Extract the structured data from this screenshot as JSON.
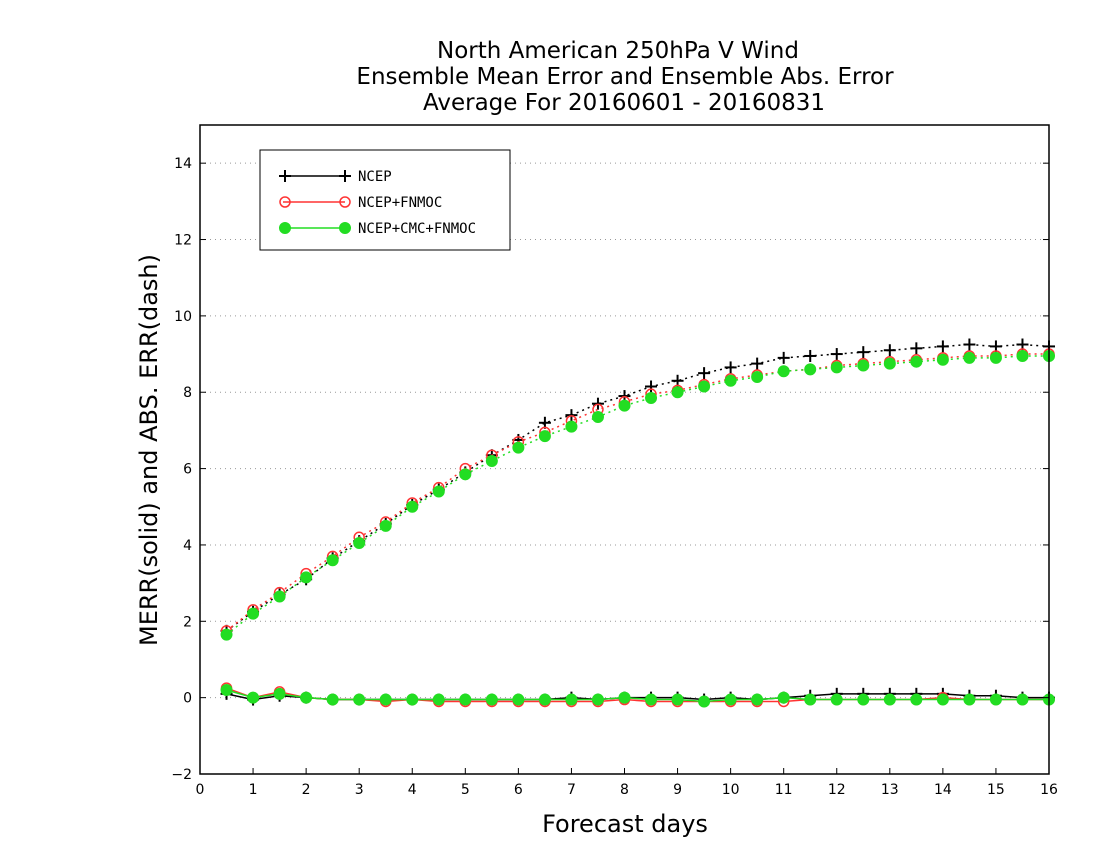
{
  "chart_data": {
    "type": "line",
    "title_lines": [
      "North American 250hPa V Wind",
      "Ensemble Mean Error and Ensemble Abs. Error",
      "Average For 20160601 - 20160831"
    ],
    "xlabel": "Forecast days",
    "ylabel": "MERR(solid) and ABS. ERR(dash)",
    "xlim": [
      0,
      16
    ],
    "ylim": [
      -2,
      15
    ],
    "xticks": [
      0,
      1,
      2,
      3,
      4,
      5,
      6,
      7,
      8,
      9,
      10,
      11,
      12,
      13,
      14,
      15,
      16
    ],
    "yticks": [
      -2,
      0,
      2,
      4,
      6,
      8,
      10,
      12,
      14
    ],
    "grid": "horizontal-dotted",
    "legend_position": "top-left",
    "x": [
      0.5,
      1,
      1.5,
      2,
      2.5,
      3,
      3.5,
      4,
      4.5,
      5,
      5.5,
      6,
      6.5,
      7,
      7.5,
      8,
      8.5,
      9,
      9.5,
      10,
      10.5,
      11,
      11.5,
      12,
      12.5,
      13,
      13.5,
      14,
      14.5,
      15,
      15.5,
      16
    ],
    "series": [
      {
        "name": "NCEP",
        "color": "#000000",
        "marker": "plus",
        "abs_err": [
          1.75,
          2.25,
          2.7,
          3.1,
          3.65,
          4.1,
          4.55,
          5.05,
          5.45,
          5.9,
          6.35,
          6.75,
          7.2,
          7.4,
          7.7,
          7.9,
          8.15,
          8.3,
          8.5,
          8.65,
          8.75,
          8.9,
          8.95,
          9.0,
          9.05,
          9.1,
          9.15,
          9.2,
          9.25,
          9.2,
          9.25,
          9.2
        ],
        "mean_err": [
          0.1,
          -0.05,
          0.05,
          0.0,
          -0.05,
          -0.05,
          -0.05,
          -0.05,
          -0.05,
          -0.05,
          -0.05,
          -0.05,
          -0.05,
          0.0,
          -0.05,
          0.0,
          0.0,
          0.0,
          -0.05,
          0.0,
          -0.05,
          0.0,
          0.05,
          0.1,
          0.1,
          0.1,
          0.1,
          0.1,
          0.05,
          0.05,
          0.0,
          0.0
        ]
      },
      {
        "name": "NCEP+FNMOC",
        "color": "#ff3333",
        "marker": "open-circle",
        "abs_err": [
          1.75,
          2.3,
          2.75,
          3.25,
          3.7,
          4.2,
          4.6,
          5.1,
          5.5,
          6.0,
          6.35,
          6.7,
          6.95,
          7.25,
          7.55,
          7.75,
          7.95,
          8.05,
          8.2,
          8.35,
          8.45,
          8.55,
          8.6,
          8.7,
          8.75,
          8.8,
          8.85,
          8.9,
          8.95,
          8.95,
          9.0,
          9.0
        ],
        "mean_err": [
          0.25,
          0.0,
          0.15,
          0.0,
          -0.05,
          -0.05,
          -0.1,
          -0.05,
          -0.1,
          -0.1,
          -0.1,
          -0.1,
          -0.1,
          -0.1,
          -0.1,
          -0.05,
          -0.1,
          -0.1,
          -0.1,
          -0.1,
          -0.1,
          -0.1,
          -0.05,
          -0.05,
          -0.05,
          -0.05,
          -0.05,
          0.0,
          -0.05,
          -0.05,
          -0.05,
          -0.05
        ]
      },
      {
        "name": "NCEP+CMC+FNMOC",
        "color": "#22dd22",
        "marker": "filled-circle",
        "abs_err": [
          1.65,
          2.2,
          2.65,
          3.15,
          3.6,
          4.05,
          4.5,
          5.0,
          5.4,
          5.85,
          6.2,
          6.55,
          6.85,
          7.1,
          7.35,
          7.65,
          7.85,
          8.0,
          8.15,
          8.3,
          8.4,
          8.55,
          8.6,
          8.65,
          8.7,
          8.75,
          8.8,
          8.85,
          8.9,
          8.9,
          8.95,
          8.95
        ],
        "mean_err": [
          0.2,
          0.0,
          0.1,
          0.0,
          -0.05,
          -0.05,
          -0.05,
          -0.05,
          -0.05,
          -0.05,
          -0.05,
          -0.05,
          -0.05,
          -0.05,
          -0.05,
          0.0,
          -0.05,
          -0.05,
          -0.1,
          -0.05,
          -0.05,
          0.0,
          -0.05,
          -0.05,
          -0.05,
          -0.05,
          -0.05,
          -0.05,
          -0.05,
          -0.05,
          -0.05,
          -0.05
        ]
      }
    ]
  }
}
